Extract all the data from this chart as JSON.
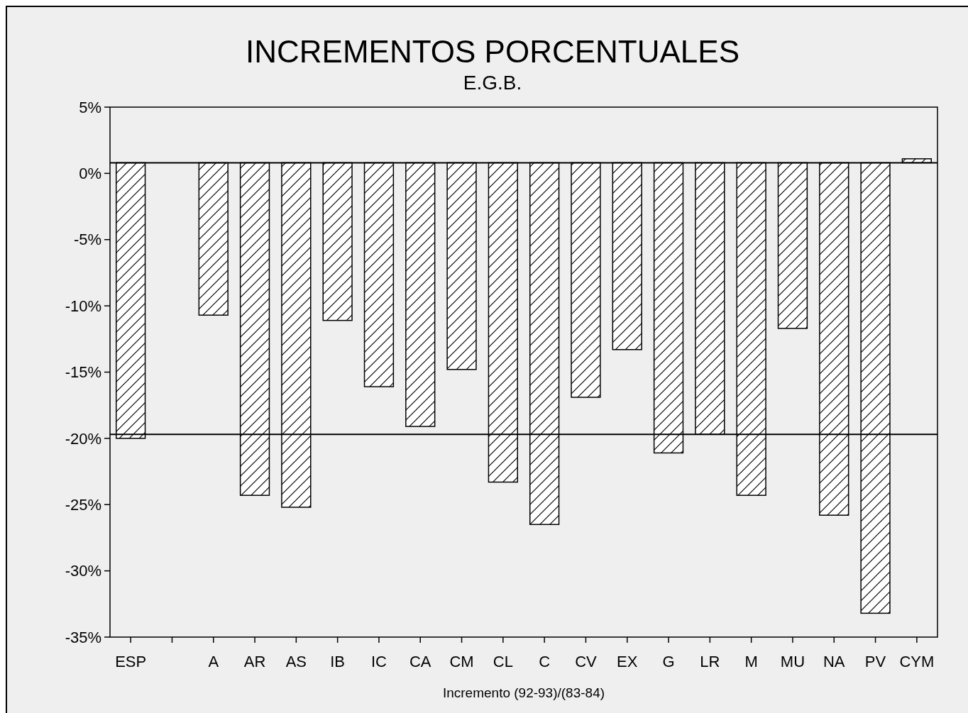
{
  "chart_data": {
    "type": "bar",
    "title": "INCREMENTOS PORCENTUALES",
    "subtitle": "E.G.B.",
    "xlabel": "Incremento (92-93)/(83-84)",
    "categories": [
      "ESP",
      null,
      "A",
      "AR",
      "AS",
      "IB",
      "IC",
      "CA",
      "CM",
      "CL",
      "C",
      "CV",
      "EX",
      "G",
      "LR",
      "M",
      "MU",
      "NA",
      "PV",
      "CYM"
    ],
    "values": [
      -20.8,
      null,
      -11.5,
      -25.1,
      -26,
      -11.9,
      -16.9,
      -19.9,
      -15.6,
      -24.1,
      -27.3,
      -17.7,
      -14.1,
      -21.9,
      -20.5,
      -25.1,
      -12.5,
      -26.6,
      -34,
      0.3
    ],
    "base": [
      0.8,
      null,
      0.8,
      0.8,
      0.8,
      0.8,
      0.8,
      0.8,
      0.8,
      0.8,
      0.8,
      0.8,
      0.8,
      0.8,
      0.8,
      0.8,
      0.8,
      0.8,
      0.8,
      0.8
    ],
    "color": "#000000",
    "ylim": [
      -35,
      5
    ],
    "yticks": [
      {
        "value": 5,
        "label": "5%"
      },
      {
        "value": 0,
        "label": "0%"
      },
      {
        "value": -5,
        "label": "-5%"
      },
      {
        "value": -10,
        "label": "-10%"
      },
      {
        "value": -15,
        "label": "-15%"
      },
      {
        "value": -20,
        "label": "-20%"
      },
      {
        "value": -25,
        "label": "-25%"
      },
      {
        "value": -30,
        "label": "-30%"
      },
      {
        "value": -35,
        "label": "-35%"
      }
    ],
    "ref_lines": [
      {
        "axis": "y",
        "value": 0.8
      },
      {
        "axis": "y",
        "value": -19.7
      }
    ],
    "grid": false
  }
}
